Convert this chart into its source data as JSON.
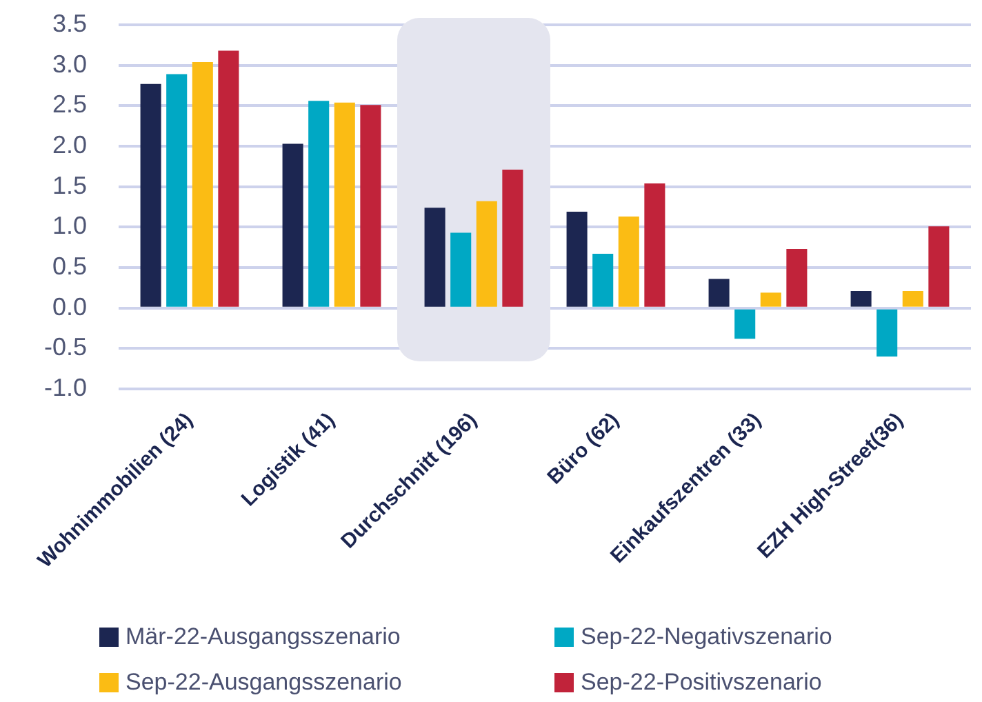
{
  "chart_data": {
    "type": "bar",
    "categories": [
      "Wohnimmobilien (24)",
      "Logistik (41)",
      "Durchschnitt (196)",
      "Büro (62)",
      "Einkaufszentren (33)",
      "EZH High-Street(36)"
    ],
    "series": [
      {
        "name": "Mär-22-Ausgangsszenario",
        "color": "#1c2651",
        "values": [
          2.77,
          2.03,
          1.24,
          1.19,
          0.36,
          0.21
        ]
      },
      {
        "name": "Sep-22-Negativszenario",
        "color": "#00a8c4",
        "values": [
          2.89,
          2.56,
          0.93,
          0.67,
          -0.38,
          -0.6
        ]
      },
      {
        "name": "Sep-22-Ausgangsszenario",
        "color": "#fbbc14",
        "values": [
          3.04,
          2.54,
          1.32,
          1.13,
          0.19,
          0.21
        ]
      },
      {
        "name": "Sep-22-Positivszenario",
        "color": "#c1233a",
        "values": [
          3.18,
          2.51,
          1.71,
          1.54,
          0.73,
          1.01
        ]
      }
    ],
    "ylim": [
      -1,
      3.5
    ],
    "yticks": [
      {
        "value": -1,
        "label": "-1.0"
      },
      -0.5,
      {
        "value": 0,
        "label": "0.0"
      },
      0.5,
      {
        "value": 1,
        "label": "1.0"
      },
      1.5,
      {
        "value": 2,
        "label": "2.0"
      },
      2.5,
      {
        "value": 3,
        "label": "3.0"
      },
      3.5
    ],
    "grid": "y",
    "legend": "bottom",
    "bands": [
      {
        "axis": "x",
        "from": "Durchschnitt (196)",
        "to": "Durchschnitt (196)",
        "color": "#e4e5ef"
      }
    ]
  }
}
